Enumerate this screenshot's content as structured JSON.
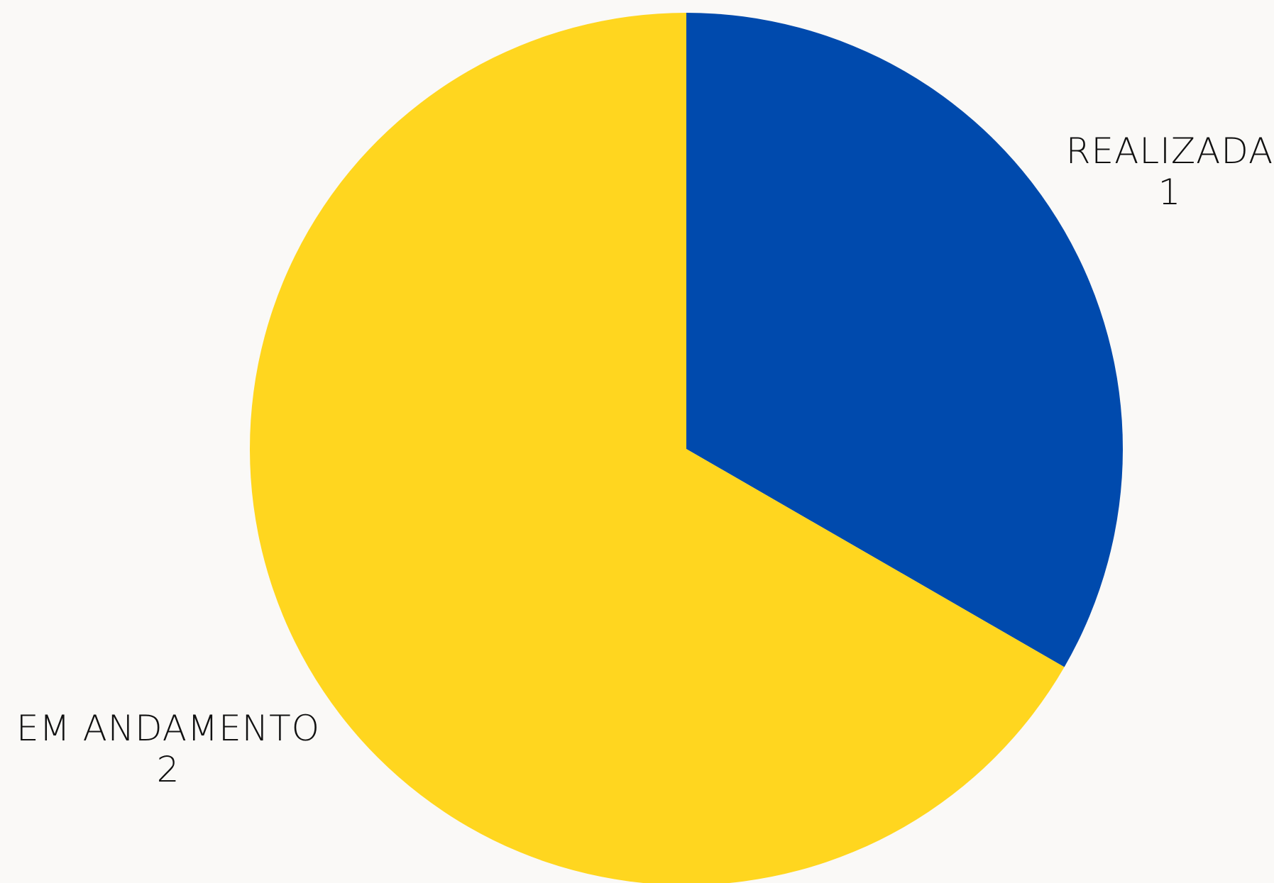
{
  "chart_data": {
    "type": "pie",
    "start_angle_deg": 0,
    "direction": "clockwise",
    "slices": [
      {
        "label": "REALIZADA",
        "value": 1,
        "color": "#004aad"
      },
      {
        "label": "EM ANDAMENTO",
        "value": 2,
        "color": "#ffd61f"
      }
    ],
    "title": "",
    "legend": "none"
  },
  "background_color": "#faf9f7"
}
